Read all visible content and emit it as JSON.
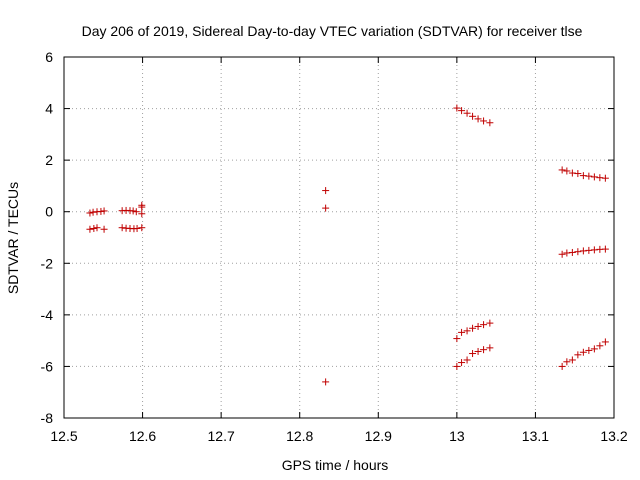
{
  "chart_data": {
    "type": "scatter",
    "title": "Day 206 of 2019, Sidereal Day-to-day VTEC variation (SDTVAR) for receiver tlse",
    "xlabel": "GPS time / hours",
    "ylabel": "SDTVAR / TECUs",
    "xlim": [
      12.5,
      13.2
    ],
    "ylim": [
      -8,
      6
    ],
    "xticks": [
      12.5,
      12.6,
      12.7,
      12.8,
      12.9,
      13.0,
      13.1,
      13.2
    ],
    "xtick_labels": [
      "12.5",
      "12.6",
      "12.7",
      "12.8",
      "12.9",
      "13",
      "13.1",
      "13.2"
    ],
    "yticks": [
      -8,
      -6,
      -4,
      -2,
      0,
      2,
      4,
      6
    ],
    "ytick_labels": [
      "-8",
      "-6",
      "-4",
      "-2",
      "0",
      "2",
      "4",
      "6"
    ],
    "grid": true,
    "marker": "+",
    "color": "#c00000",
    "series": [
      {
        "name": "SDTVAR",
        "points": [
          [
            12.533,
            -0.05
          ],
          [
            12.537,
            -0.02
          ],
          [
            12.542,
            0.0
          ],
          [
            12.547,
            0.01
          ],
          [
            12.551,
            0.03
          ],
          [
            12.574,
            0.04
          ],
          [
            12.579,
            0.05
          ],
          [
            12.584,
            0.04
          ],
          [
            12.588,
            0.03
          ],
          [
            12.592,
            0.0
          ],
          [
            12.599,
            -0.08
          ],
          [
            12.599,
            0.18
          ],
          [
            12.599,
            0.25
          ],
          [
            12.533,
            -0.68
          ],
          [
            12.538,
            -0.65
          ],
          [
            12.542,
            -0.62
          ],
          [
            12.551,
            -0.68
          ],
          [
            12.574,
            -0.62
          ],
          [
            12.579,
            -0.64
          ],
          [
            12.584,
            -0.65
          ],
          [
            12.589,
            -0.66
          ],
          [
            12.593,
            -0.65
          ],
          [
            12.599,
            -0.62
          ],
          [
            12.833,
            0.82
          ],
          [
            12.833,
            0.14
          ],
          [
            12.833,
            -6.6
          ],
          [
            13.0,
            4.02
          ],
          [
            13.006,
            3.92
          ],
          [
            13.013,
            3.82
          ],
          [
            13.02,
            3.7
          ],
          [
            13.027,
            3.6
          ],
          [
            13.034,
            3.52
          ],
          [
            13.042,
            3.45
          ],
          [
            13.0,
            -4.92
          ],
          [
            13.006,
            -4.68
          ],
          [
            13.013,
            -4.62
          ],
          [
            13.02,
            -4.52
          ],
          [
            13.027,
            -4.45
          ],
          [
            13.034,
            -4.38
          ],
          [
            13.042,
            -4.32
          ],
          [
            13.0,
            -6.0
          ],
          [
            13.006,
            -5.85
          ],
          [
            13.013,
            -5.75
          ],
          [
            13.02,
            -5.5
          ],
          [
            13.027,
            -5.42
          ],
          [
            13.034,
            -5.35
          ],
          [
            13.042,
            -5.28
          ],
          [
            13.134,
            1.62
          ],
          [
            13.14,
            1.58
          ],
          [
            13.147,
            1.5
          ],
          [
            13.154,
            1.48
          ],
          [
            13.161,
            1.4
          ],
          [
            13.168,
            1.38
          ],
          [
            13.175,
            1.35
          ],
          [
            13.182,
            1.32
          ],
          [
            13.189,
            1.3
          ],
          [
            13.134,
            -1.65
          ],
          [
            13.14,
            -1.6
          ],
          [
            13.147,
            -1.58
          ],
          [
            13.154,
            -1.55
          ],
          [
            13.161,
            -1.52
          ],
          [
            13.168,
            -1.5
          ],
          [
            13.175,
            -1.48
          ],
          [
            13.182,
            -1.46
          ],
          [
            13.189,
            -1.45
          ],
          [
            13.134,
            -6.0
          ],
          [
            13.14,
            -5.82
          ],
          [
            13.147,
            -5.75
          ],
          [
            13.154,
            -5.55
          ],
          [
            13.161,
            -5.45
          ],
          [
            13.168,
            -5.38
          ],
          [
            13.175,
            -5.32
          ],
          [
            13.182,
            -5.2
          ],
          [
            13.189,
            -5.05
          ]
        ]
      }
    ]
  }
}
